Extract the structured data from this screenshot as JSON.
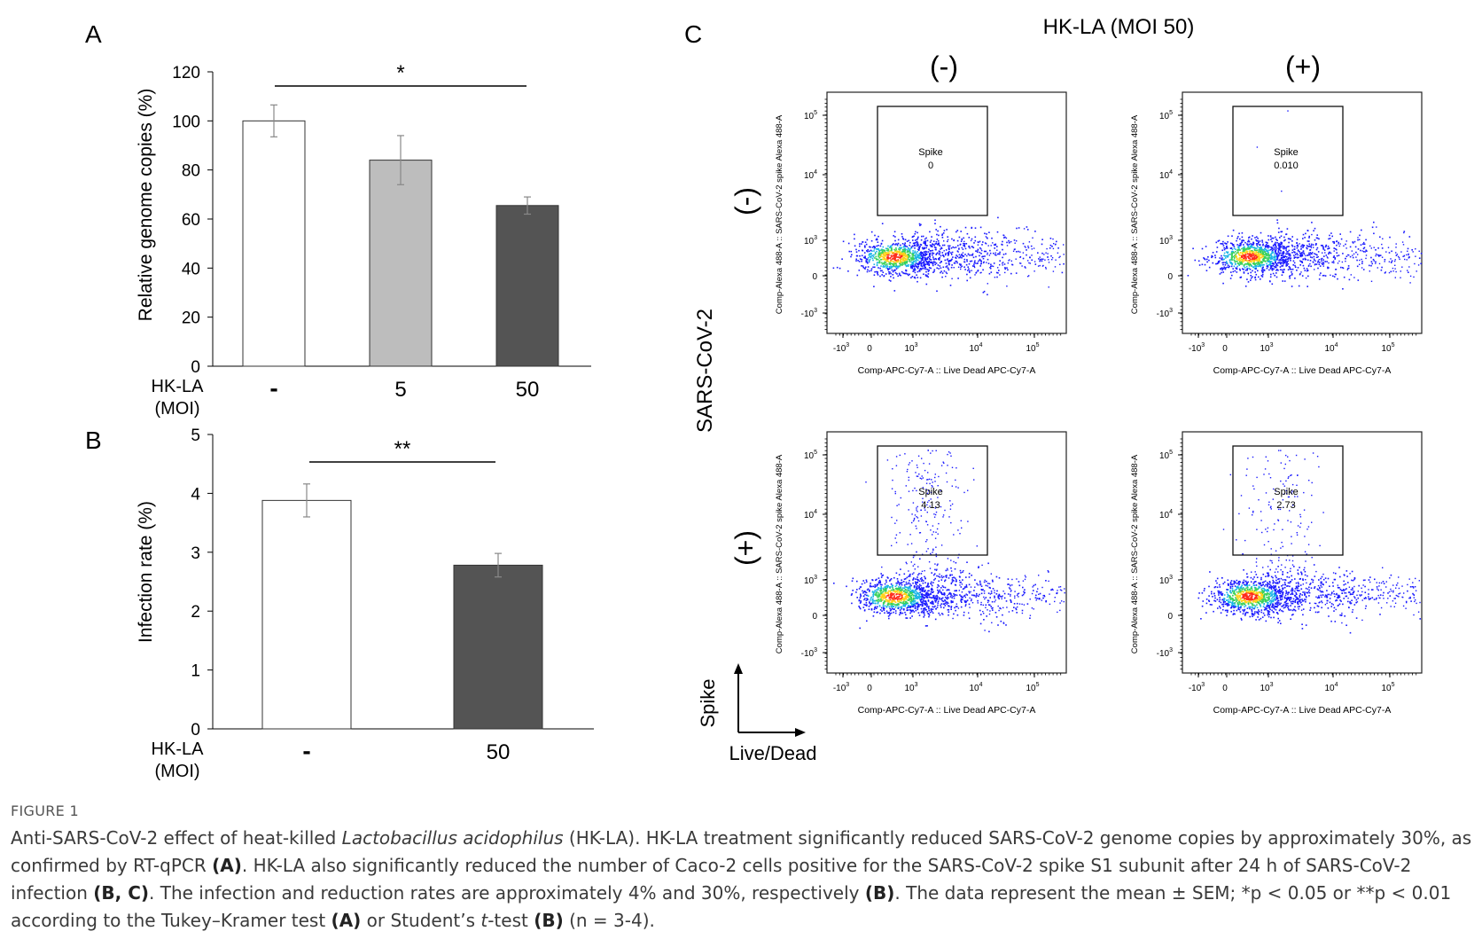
{
  "panels": {
    "A": {
      "label": "A",
      "ylabel": "Relative genome copies (%)",
      "row_label": "HK-LA",
      "row_label2": "(MOI)",
      "significance": "*",
      "chart_data": {
        "type": "bar",
        "categories": [
          "-",
          "5",
          "50"
        ],
        "values": [
          100,
          84,
          65.5
        ],
        "errors": [
          6.5,
          10,
          3.5
        ],
        "colors": [
          "#ffffff",
          "#bdbdbd",
          "#545454"
        ],
        "ylim": [
          0,
          120
        ],
        "yticks": [
          "0",
          "20",
          "40",
          "60",
          "80",
          "100",
          "120"
        ],
        "ylabel": "Relative genome copies (%)",
        "xlabel": "HK-LA (MOI)",
        "sig_between": [
          0,
          2
        ]
      }
    },
    "B": {
      "label": "B",
      "ylabel": "Infection rate (%)",
      "row_label": "HK-LA",
      "row_label2": "(MOI)",
      "significance": "**",
      "chart_data": {
        "type": "bar",
        "categories": [
          "-",
          "50"
        ],
        "values": [
          3.88,
          2.78
        ],
        "errors": [
          0.28,
          0.2
        ],
        "colors": [
          "#ffffff",
          "#545454"
        ],
        "ylim": [
          0,
          5
        ],
        "yticks": [
          "0",
          "1",
          "2",
          "3",
          "4",
          "5"
        ],
        "ylabel": "Infection rate (%)",
        "xlabel": "HK-LA (MOI)",
        "sig_between": [
          0,
          1
        ]
      }
    },
    "C": {
      "label": "C",
      "title": "HK-LA (MOI 50)",
      "col_minus": "(-)",
      "col_plus": "(+)",
      "row_minus": "(-)",
      "row_plus": "(+)",
      "row_group": "SARS-CoV-2",
      "axis_y_key": "Spike",
      "axis_x_key": "Live/Dead",
      "plot_xlabel": "Comp-APC-Cy7-A :: Live Dead APC-Cy7-A",
      "plot_ylabel": "Comp-Alexa 488-A :: SARS-CoV-2 spike Alexa 488-A",
      "gate_name": "Spike",
      "x_ticks": [
        "-10",
        "0",
        "10",
        "10",
        "10"
      ],
      "x_tick_exp": [
        "3",
        "",
        "3",
        "4",
        "5"
      ],
      "y_ticks": [
        "10",
        "10",
        "10",
        "0",
        "-10"
      ],
      "y_tick_exp": [
        "5",
        "4",
        "3",
        "",
        "3"
      ],
      "chart_data": {
        "type": "scatter",
        "plots": [
          {
            "virus": "(-)",
            "hkla": "(-)",
            "gate_value": "0"
          },
          {
            "virus": "(-)",
            "hkla": "(+)",
            "gate_value": "0.010"
          },
          {
            "virus": "(+)",
            "hkla": "(-)",
            "gate_value": "4.13"
          },
          {
            "virus": "(+)",
            "hkla": "(+)",
            "gate_value": "2.73"
          }
        ]
      }
    }
  },
  "caption": {
    "label": "FIGURE 1",
    "p1": "Anti-SARS-CoV-2 effect of heat-killed ",
    "species": "Lactobacillus acidophilus",
    "p2": " (HK-LA). HK-LA treatment significantly reduced SARS-CoV-2 genome copies by approximately 30%, as confirmed by RT-qPCR ",
    "refA": "(A)",
    "p3": ". HK-LA also significantly reduced the number of Caco-2 cells positive for the SARS-CoV-2 spike S1 subunit after 24 h of SARS-CoV-2 infection ",
    "refBC": "(B, C)",
    "p4": ". The infection and reduction rates are approximately 4% and 30%, respectively ",
    "refB": "(B)",
    "p5": ". The data represent the mean ± SEM; *p < 0.05 or **p < 0.01 according to the Tukey–Kramer test ",
    "refA2": "(A)",
    "p6": " or Student’s ",
    "ttest_t": "t",
    "p7": "-test ",
    "refB2": "(B)",
    "p8": " (n = 3-4)."
  }
}
